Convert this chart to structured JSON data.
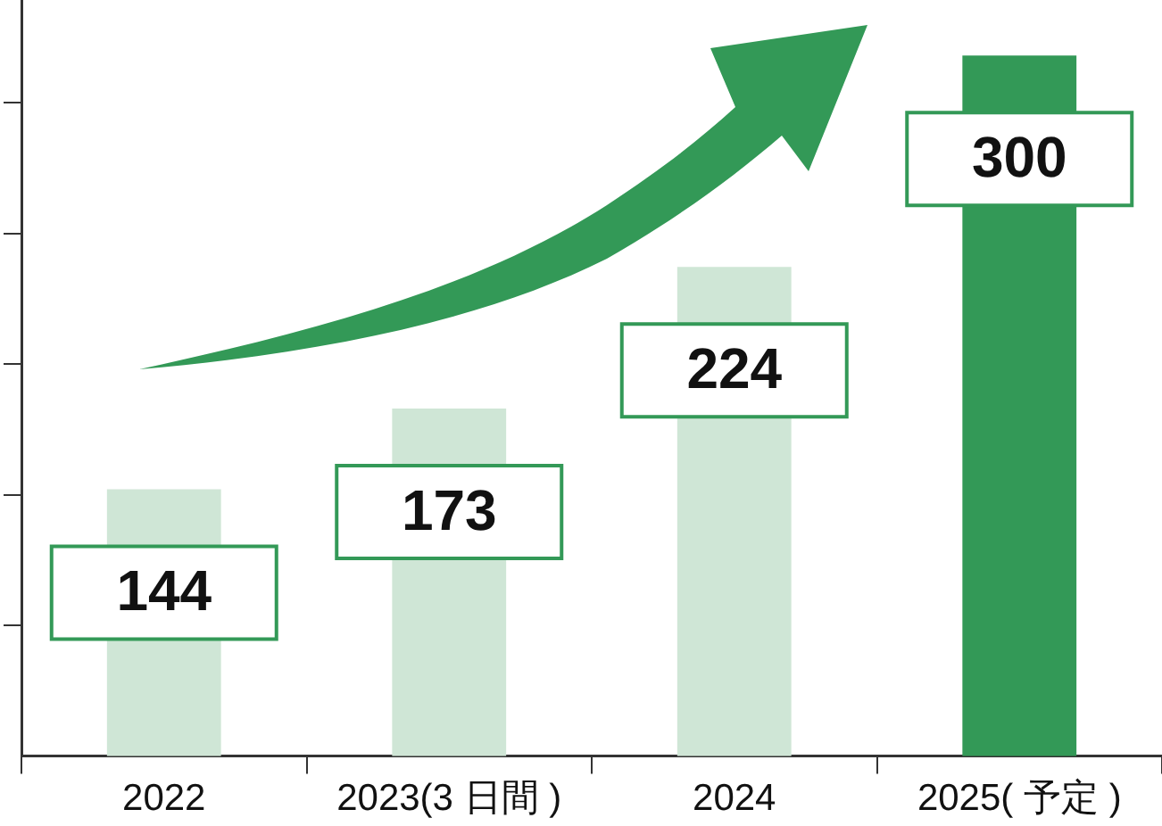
{
  "chart_data": {
    "type": "bar",
    "categories": [
      "2022",
      "2023(3 日間 )",
      "2024",
      "2025( 予定 )"
    ],
    "values": [
      144,
      173,
      224,
      300
    ],
    "colors": [
      "#cfe6d6",
      "#cfe6d6",
      "#cfe6d6",
      "#339957"
    ],
    "ylim": [
      48,
      320
    ],
    "yticks": [
      {
        "value": 95,
        "label": null
      },
      {
        "value": 142,
        "label": null
      },
      {
        "value": 189,
        "label": null
      },
      {
        "value": 236,
        "label": null
      },
      {
        "value": 283,
        "label": null
      }
    ],
    "tick_labels": "x",
    "data_labels": true
  }
}
